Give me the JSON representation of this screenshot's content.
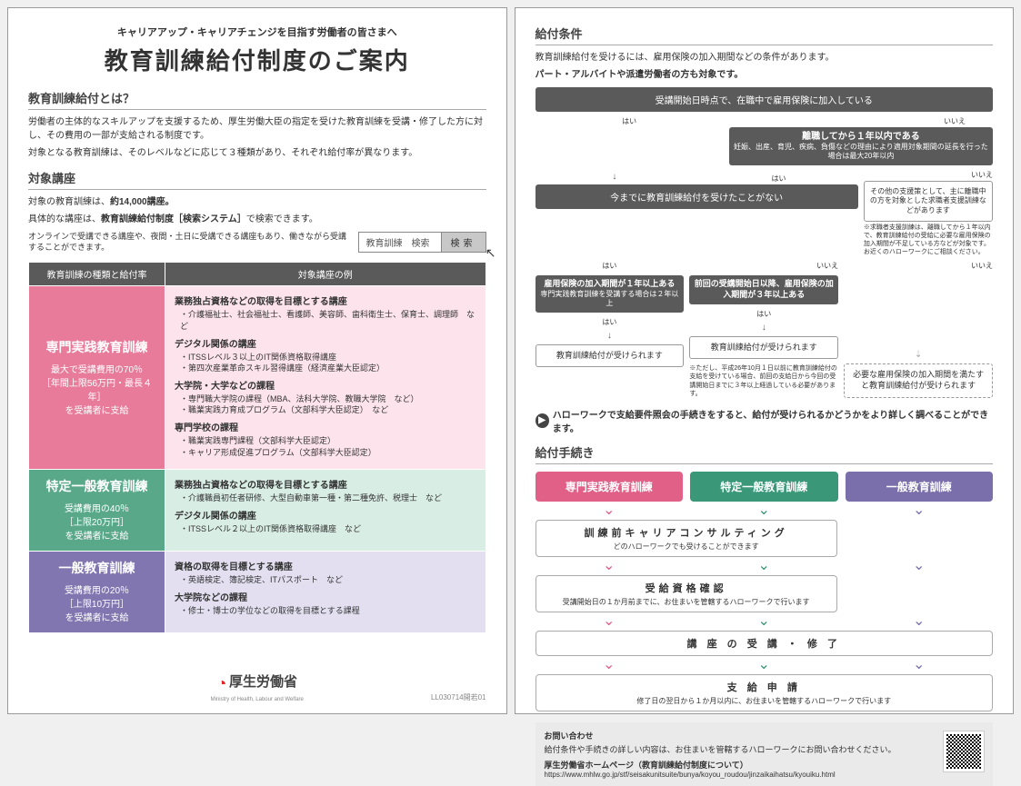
{
  "page1": {
    "subtitle": "キャリアアップ・キャリアチェンジを目指す労働者の皆さまへ",
    "title": "教育訓練給付制度のご案内",
    "sec1_head": "教育訓練給付とは？",
    "sec1_p1": "労働者の主体的なスキルアップを支援するため、厚生労働大臣の指定を受けた教育訓練を受講・修了した方に対し、その費用の一部が支給される制度です。",
    "sec1_p2": "対象となる教育訓練は、そのレベルなどに応じて３種類があり、それぞれ給付率が異なります。",
    "sec2_head": "対象講座",
    "sec2_p1_pre": "対象の教育訓練は、",
    "sec2_p1_bold": "約14,000講座。",
    "sec2_p2_pre": "具体的な講座は、",
    "sec2_p2_bold": "教育訓練給付制度［検索システム］",
    "sec2_p2_post": "で検索できます。",
    "search_note": "オンラインで受講できる講座や、夜間・土日に受講できる講座もあり、働きながら受講することができます。",
    "search_placeholder": "教育訓練　検索",
    "search_btn": "検索",
    "table": {
      "th1": "教育訓練の種類と給付率",
      "th2": "対象講座の例",
      "rows": [
        {
          "cls": "row-pink",
          "title": "専門実践教育訓練",
          "sub": "最大で受講費用の70％\n［年間上限56万円・最長４年］\nを受講者に支給",
          "groups": [
            {
              "t": "業務独占資格などの取得を目標とする講座",
              "items": [
                "介護福祉士、社会福祉士、看護師、美容師、歯科衛生士、保育士、調理師　など"
              ]
            },
            {
              "t": "デジタル関係の講座",
              "items": [
                "ITSSレベル３以上のIT関係資格取得講座",
                "第四次産業革命スキル習得講座（経済産業大臣認定）"
              ]
            },
            {
              "t": "大学院・大学などの課程",
              "items": [
                "専門職大学院の課程（MBA、法科大学院、教職大学院　など）",
                "職業実践力育成プログラム（文部科学大臣認定）　など"
              ]
            },
            {
              "t": "専門学校の課程",
              "items": [
                "職業実践専門課程（文部科学大臣認定）",
                "キャリア形成促進プログラム（文部科学大臣認定）"
              ]
            }
          ]
        },
        {
          "cls": "row-green",
          "title": "特定一般教育訓練",
          "sub": "受講費用の40％\n［上限20万円］\nを受講者に支給",
          "groups": [
            {
              "t": "業務独占資格などの取得を目標とする講座",
              "items": [
                "介護職員初任者研修、大型自動車第一種・第二種免許、税理士　など"
              ]
            },
            {
              "t": "デジタル関係の講座",
              "items": [
                "ITSSレベル２以上のIT関係資格取得講座　など"
              ]
            }
          ]
        },
        {
          "cls": "row-purple",
          "title": "一般教育訓練",
          "sub": "受講費用の20％\n［上限10万円］\nを受講者に支給",
          "groups": [
            {
              "t": "資格の取得を目標とする講座",
              "items": [
                "英語検定、簿記検定、ITパスポート　など"
              ]
            },
            {
              "t": "大学院などの課程",
              "items": [
                "修士・博士の学位などの取得を目標とする課程"
              ]
            }
          ]
        }
      ]
    },
    "ministry_label": "厚生労働省",
    "ministry_sub": "Ministry of Health, Labour and Welfare",
    "footer_code": "LL030714開若01"
  },
  "page2": {
    "sec1_head": "給付条件",
    "sec1_p1": "教育訓練給付を受けるには、雇用保険の加入期間などの条件があります。",
    "sec1_p2": "パート・アルバイトや派遣労働者の方も対象です。",
    "flow": {
      "n1": "受講開始日時点で、在職中で雇用保険に加入している",
      "yes": "はい",
      "no": "いいえ",
      "n2": "離職してから１年以内である",
      "n2_sub": "妊娠、出産、育児、疾病、負傷などの理由により適用対象期間の延長を行った場合は最大20年以内",
      "n3": "今までに教育訓練給付を受けたことがない",
      "side_box": "その他の支援策として、主に離職中の方を対象とした求職者支援訓練などがあります",
      "side_note": "※求職者支援訓練は、離職してから１年以内で、教育訓練給付の受給に必要な雇用保険の加入期間が不足している方などが対象です。お近くのハローワークにご相談ください。",
      "n4a": "雇用保険の加入期間が１年以上ある",
      "n4a_sub": "専門実践教育訓練を受講する場合は２年以上",
      "n4b": "前回の受講開始日以降、雇用保険の加入期間が３年以上ある",
      "r_ok": "教育訓練給付が受けられます",
      "r_ok_note": "※ただし、平成26年10月１日以前に教育訓練給付の支給を受けている場合、前回の支給日から今回の受講開始日までに３年以上経過している必要があります。",
      "r_ng": "必要な雇用保険の加入期間を満たすと教育訓練給付が受けられます"
    },
    "hw_note": "ハローワークで支給要件照会の手続きをすると、給付が受けられるかどうかをより詳しく調べることができます。",
    "sec2_head": "給付手続き",
    "tabs": {
      "pink": "専門実践教育訓練",
      "green": "特定一般教育訓練",
      "purple": "一般教育訓練"
    },
    "steps": [
      {
        "w": "wide",
        "t": "訓練前キャリアコンサルティング",
        "s": "どのハローワークでも受けることができます"
      },
      {
        "w": "wide",
        "t": "受給資格確認",
        "s": "受講開始日の１か月前までに、お住まいを管轄するハローワークで行います"
      },
      {
        "w": "full",
        "t": "講 座 の 受 講 ・ 修 了",
        "s": ""
      },
      {
        "w": "full",
        "t": "支 給 申 請",
        "s": "修了日の翌日から１か月以内に、お住まいを管轄するハローワークで行います"
      }
    ],
    "contact": {
      "title": "お問い合わせ",
      "line1": "給付条件や手続きの詳しい内容は、お住まいを管轄するハローワークにお問い合わせください。",
      "line2_bold": "厚生労働省ホームページ（教育訓練給付制度について）",
      "url": "https://www.mhlw.go.jp/stf/seisakunitsuite/bunya/koyou_roudou/jinzaikaihatsu/kyouiku.html"
    }
  }
}
